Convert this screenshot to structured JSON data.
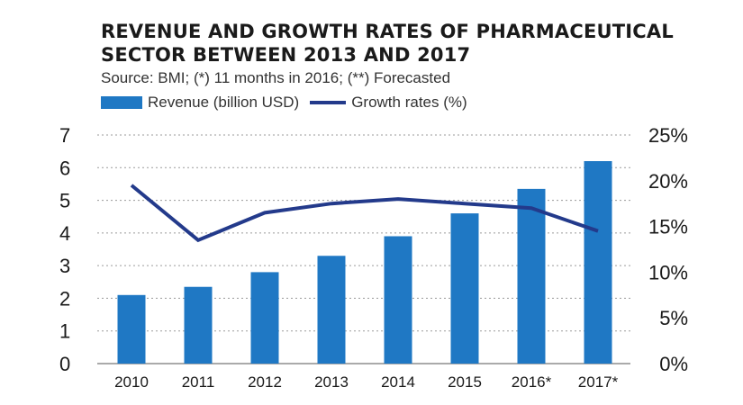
{
  "chart_data": {
    "type": "bar",
    "title_lines": [
      "REVENUE AND GROWTH RATES OF PHARMACEUTICAL",
      "SECTOR BETWEEN 2013 AND 2017"
    ],
    "subtitle": "Source: BMI; (*) 11 months in 2016; (**) Forecasted",
    "categories": [
      "2010",
      "2011",
      "2012",
      "2013",
      "2014",
      "2015",
      "2016*",
      "2017*"
    ],
    "series": [
      {
        "name": "Revenue (billion USD)",
        "kind": "bar",
        "axis": "left",
        "color": "#1f78c4",
        "values": [
          2.1,
          2.35,
          2.8,
          3.3,
          3.9,
          4.6,
          5.35,
          6.2
        ]
      },
      {
        "name": "Growth rates (%)",
        "kind": "line",
        "axis": "right",
        "color": "#233a8b",
        "values": [
          19.5,
          13.5,
          16.5,
          17.5,
          18.0,
          17.5,
          17.0,
          14.5
        ]
      }
    ],
    "y_left": {
      "min": 0,
      "max": 7,
      "ticks": [
        "0",
        "1",
        "2",
        "3",
        "4",
        "5",
        "6",
        "7"
      ]
    },
    "y_right": {
      "min": 0,
      "max": 25,
      "ticks": [
        "0%",
        "5%",
        "10%",
        "15%",
        "20%",
        "25%"
      ]
    },
    "grid": true,
    "legend_placement": "top-left"
  }
}
